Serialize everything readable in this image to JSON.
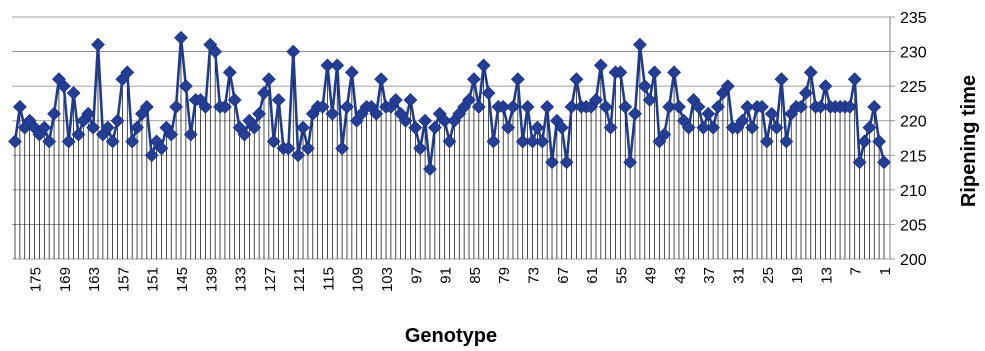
{
  "chart_data": {
    "type": "line",
    "xlabel": "Genotype",
    "ylabel": "Ripening time",
    "ylim": [
      200,
      235
    ],
    "yticks": [
      200,
      205,
      210,
      215,
      220,
      225,
      230,
      235
    ],
    "xtick_labels": [
      175,
      169,
      163,
      157,
      151,
      145,
      139,
      133,
      127,
      121,
      115,
      109,
      103,
      97,
      91,
      85,
      79,
      73,
      67,
      61,
      55,
      49,
      43,
      37,
      31,
      25,
      19,
      13,
      7,
      1
    ],
    "x_reversed": true,
    "x_range": [
      1,
      179
    ],
    "grid": "vertical drop lines per genotype, horizontal gridlines",
    "marker": "diamond",
    "line_color": "#1f3b8c",
    "marker_color": "#233e94",
    "series": [
      {
        "x": [
          179,
          178,
          177,
          176,
          175,
          174,
          173,
          172,
          171,
          170,
          169,
          168,
          167,
          166,
          165,
          164,
          163,
          162,
          161,
          160,
          159,
          158,
          157,
          156,
          155,
          154,
          153,
          152,
          151,
          150,
          149,
          148,
          147,
          146,
          145,
          144,
          143,
          142,
          141,
          140,
          139,
          138,
          137,
          136,
          135,
          134,
          133,
          132,
          131,
          130,
          129,
          128,
          127,
          126,
          125,
          124,
          123,
          122,
          121,
          120,
          119,
          118,
          117,
          116,
          115,
          114,
          113,
          112,
          111,
          110,
          109,
          108,
          107,
          106,
          105,
          104,
          103,
          102,
          101,
          100,
          99,
          98,
          97,
          96,
          95,
          94,
          93,
          92,
          91,
          90,
          89,
          88,
          87,
          86,
          85,
          84,
          83,
          82,
          81,
          80,
          79,
          78,
          77,
          76,
          75,
          74,
          73,
          72,
          71,
          70,
          69,
          68,
          67,
          66,
          65,
          64,
          63,
          62,
          61,
          60,
          59,
          58,
          57,
          56,
          55,
          54,
          53,
          52,
          51,
          50,
          49,
          48,
          47,
          46,
          45,
          44,
          43,
          42,
          41,
          40,
          39,
          38,
          37,
          36,
          35,
          34,
          33,
          32,
          31,
          30,
          29,
          28,
          27,
          26,
          25,
          24,
          23,
          22,
          21,
          20,
          19,
          18,
          17,
          16,
          15,
          14,
          13,
          12,
          11,
          10,
          9,
          8,
          7,
          6,
          5,
          4,
          3,
          2,
          1
        ],
        "values": [
          217,
          222,
          219,
          220,
          219,
          218,
          219,
          217,
          221,
          226,
          225,
          217,
          224,
          218,
          220,
          221,
          219,
          231,
          218,
          219,
          217,
          220,
          226,
          227,
          217,
          219,
          221,
          222,
          215,
          217,
          216,
          219,
          218,
          222,
          232,
          225,
          218,
          223,
          223,
          222,
          231,
          230,
          222,
          222,
          227,
          223,
          219,
          218,
          220,
          219,
          221,
          224,
          226,
          217,
          223,
          216,
          216,
          230,
          215,
          219,
          216,
          221,
          222,
          222,
          228,
          221,
          228,
          216,
          222,
          227,
          220,
          221,
          222,
          222,
          221,
          226,
          222,
          222,
          223,
          221,
          220,
          223,
          219,
          216,
          220,
          213,
          219,
          221,
          220,
          217,
          220,
          221,
          222,
          223,
          226,
          222,
          228,
          224,
          217,
          222,
          222,
          219,
          222,
          226,
          217,
          222,
          217,
          219,
          217,
          222,
          214,
          220,
          219,
          214,
          222,
          226,
          222,
          222,
          222,
          223,
          228,
          222,
          219,
          227,
          227,
          222,
          214,
          221,
          231,
          225,
          223,
          227,
          217,
          218,
          222,
          227,
          222,
          220,
          219,
          223,
          222,
          219,
          221,
          219,
          222,
          224,
          225,
          219,
          219,
          220,
          222,
          219,
          222,
          222,
          217,
          221,
          219,
          226,
          217,
          221,
          222,
          222,
          224,
          227,
          222,
          222,
          225,
          222,
          222,
          222,
          222,
          222,
          226,
          214,
          217,
          219,
          222,
          217,
          214
        ]
      }
    ]
  }
}
